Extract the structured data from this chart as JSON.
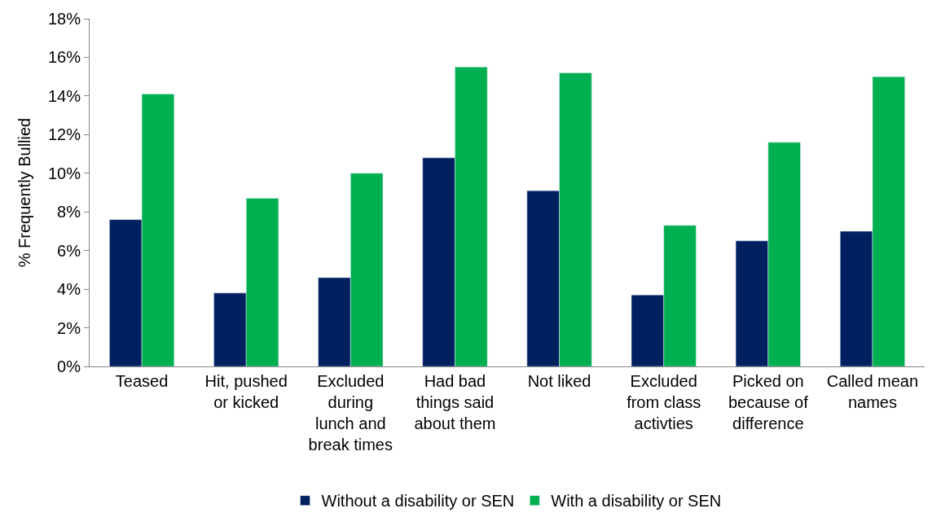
{
  "chart_data": {
    "type": "bar",
    "ylabel": "% Frequently Bullied",
    "categories": [
      "Teased",
      "Hit, pushed or kicked",
      "Excluded during lunch and break times",
      "Had bad things said about them",
      "Not liked",
      "Excluded from class activties",
      "Picked on because of difference",
      "Called mean names"
    ],
    "series": [
      {
        "name": "Without a disability or SEN",
        "color": "#002060",
        "values": [
          7.6,
          3.8,
          4.6,
          10.8,
          9.1,
          3.7,
          6.5,
          7.0
        ]
      },
      {
        "name": "With a disability or SEN",
        "color": "#00b050",
        "values": [
          14.1,
          8.7,
          10.0,
          15.5,
          15.2,
          7.3,
          11.6,
          15.0
        ]
      }
    ],
    "ylim": [
      0,
      18
    ],
    "yticks": [
      {
        "value": 0,
        "label": "0%"
      },
      {
        "value": 2,
        "label": "2%"
      },
      {
        "value": 4,
        "label": "4%"
      },
      {
        "value": 6,
        "label": "6%"
      },
      {
        "value": 8,
        "label": "8%"
      },
      {
        "value": 10,
        "label": "10%"
      },
      {
        "value": 12,
        "label": "12%"
      },
      {
        "value": 14,
        "label": "14%"
      },
      {
        "value": 16,
        "label": "16%"
      },
      {
        "value": 18,
        "label": "18%"
      }
    ],
    "legend": "bottom"
  }
}
